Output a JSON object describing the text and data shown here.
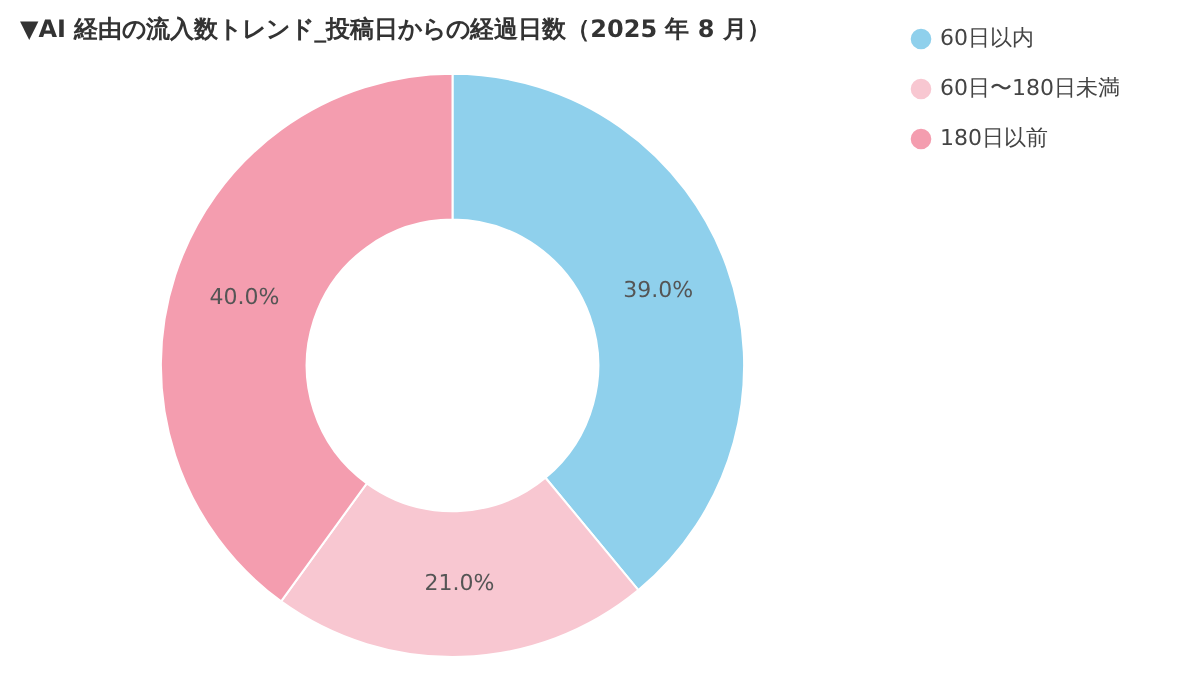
{
  "chart_data": {
    "type": "donut",
    "title": "▼AI 経由の流入数トレンド_投稿日からの経過日数（2025 年 8 月）",
    "categories": [
      "60日以内",
      "60日〜180日未満",
      "180日以前"
    ],
    "values": [
      39.0,
      21.0,
      40.0
    ],
    "colors": [
      "#8fd0ec",
      "#f8c7d1",
      "#f49daf"
    ],
    "value_labels": [
      "39.0%",
      "21.0%",
      "40.0%"
    ],
    "legend": "right"
  }
}
